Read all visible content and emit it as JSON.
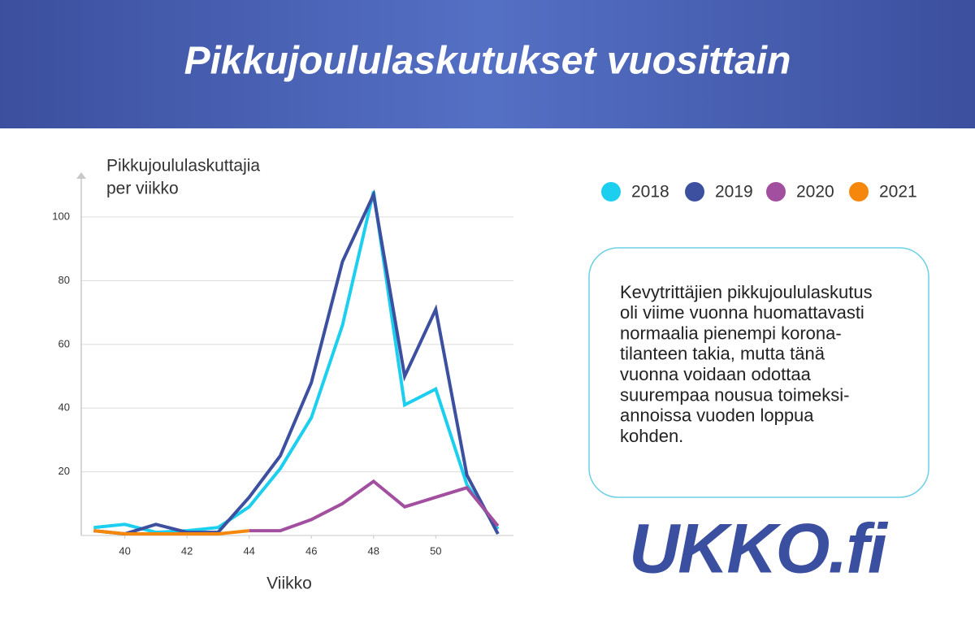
{
  "chart_data": {
    "type": "line",
    "title": "Pikkujoululaskutukset vuosittain",
    "ylabel": [
      "Pikkujoululaskuttajia",
      "per viikko"
    ],
    "xlabel": "Viikko",
    "x": [
      39,
      40,
      41,
      42,
      43,
      44,
      45,
      46,
      47,
      48,
      49,
      50,
      51,
      52
    ],
    "xlim": [
      38.6,
      52.5
    ],
    "xticks": [
      40,
      42,
      44,
      46,
      48,
      50
    ],
    "ylim": [
      0,
      112
    ],
    "yticks": [
      20,
      40,
      60,
      80,
      100
    ],
    "grid": true,
    "legend": "top-right",
    "series": [
      {
        "name": "2018",
        "color": "#1ccfef",
        "values": [
          2.5,
          3.5,
          1,
          1.5,
          2.5,
          9,
          21,
          37,
          66,
          108,
          41,
          46,
          16,
          2
        ]
      },
      {
        "name": "2019",
        "color": "#3d4f9f",
        "values": [
          1.5,
          0.5,
          3.5,
          1,
          1,
          12,
          25,
          48,
          86,
          107,
          50,
          71,
          19,
          0.5
        ]
      },
      {
        "name": "2020",
        "color": "#a24f9f",
        "values": [
          null,
          null,
          null,
          null,
          null,
          1.5,
          1.5,
          5,
          10,
          17,
          9,
          12,
          15,
          3
        ]
      },
      {
        "name": "2021",
        "color": "#f5880c",
        "values": [
          1.5,
          0.5,
          0.5,
          0.5,
          0.5,
          1.5,
          null,
          null,
          null,
          null,
          null,
          null,
          null,
          null
        ]
      }
    ],
    "note": [
      "Kevytrittäjien pikkujoululaskutus",
      "oli viime vuonna huomattavasti",
      "normaalia pienempi korona-",
      "tilanteen takia, mutta tänä",
      "vuonna voidaan odottaa",
      "suurempaa nousua toimeksi-",
      "annoissa vuoden loppua",
      "kohden."
    ],
    "logo": "UKKO.fi"
  }
}
